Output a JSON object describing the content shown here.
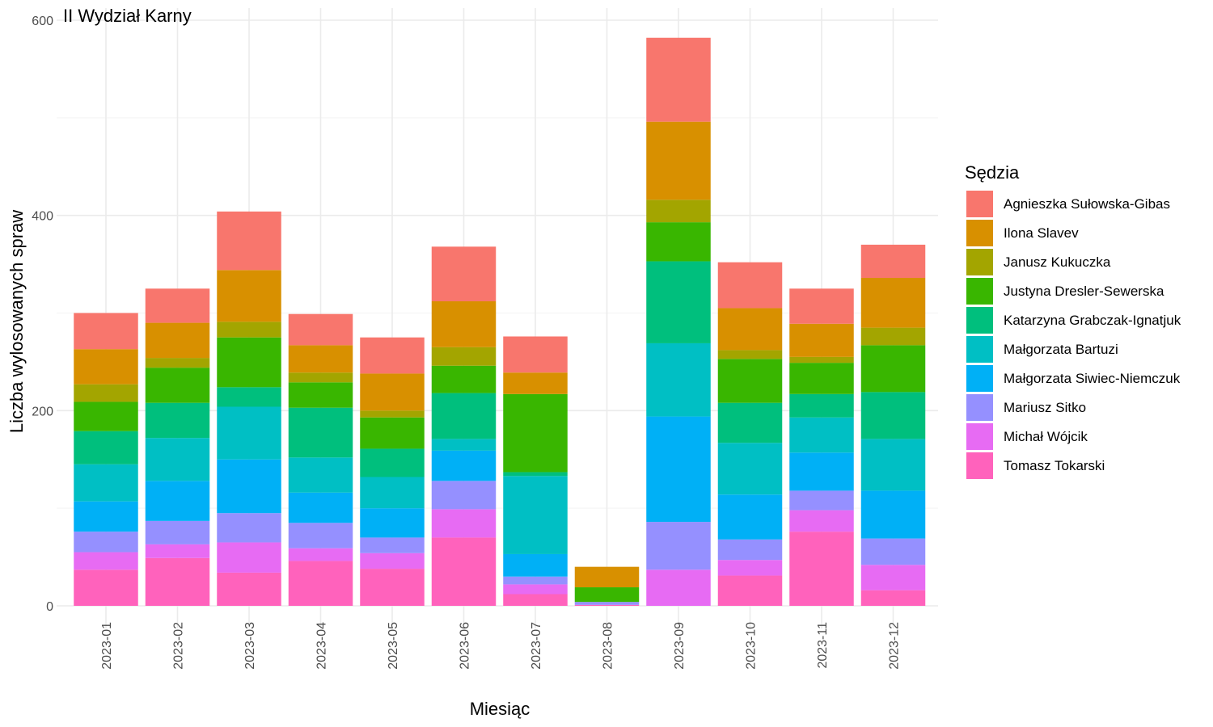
{
  "chart_data": {
    "type": "bar",
    "stacked": true,
    "title": "II Wydział Karny",
    "xlabel": "Miesiąc",
    "ylabel": "Liczba wylosowanych spraw",
    "ylim": [
      0,
      600
    ],
    "yticks": [
      0,
      200,
      400,
      600
    ],
    "grid": true,
    "legend_title": "Sędzia",
    "legend_position": "right",
    "categories": [
      "2023-01",
      "2023-02",
      "2023-03",
      "2023-04",
      "2023-05",
      "2023-06",
      "2023-07",
      "2023-08",
      "2023-09",
      "2023-10",
      "2023-11",
      "2023-12"
    ],
    "series": [
      {
        "name": "Agnieszka Sułowska-Gibas",
        "color": "#F8766D",
        "values": [
          37,
          35,
          60,
          32,
          37,
          56,
          37,
          0,
          86,
          47,
          36,
          34
        ]
      },
      {
        "name": "Ilona Slavev",
        "color": "#D89000",
        "values": [
          36,
          36,
          53,
          28,
          38,
          47,
          22,
          21,
          80,
          43,
          34,
          51
        ]
      },
      {
        "name": "Janusz Kukuczka",
        "color": "#A3A500",
        "values": [
          18,
          10,
          16,
          10,
          7,
          19,
          0,
          0,
          23,
          9,
          6,
          18
        ]
      },
      {
        "name": "Justyna Dresler-Sewerska",
        "color": "#39B600",
        "values": [
          30,
          36,
          51,
          26,
          32,
          28,
          80,
          15,
          40,
          45,
          32,
          48
        ]
      },
      {
        "name": "Katarzyna Grabczak-Ignatjuk",
        "color": "#00BF7D",
        "values": [
          34,
          36,
          20,
          51,
          29,
          47,
          4,
          0,
          84,
          41,
          24,
          48
        ]
      },
      {
        "name": "Małgorzata Bartuzi",
        "color": "#00BFC4",
        "values": [
          38,
          44,
          54,
          36,
          32,
          12,
          80,
          0,
          75,
          53,
          36,
          53
        ]
      },
      {
        "name": "Małgorzata Siwiec-Niemczuk",
        "color": "#00B0F6",
        "values": [
          31,
          41,
          55,
          31,
          30,
          31,
          23,
          0,
          108,
          46,
          39,
          49
        ]
      },
      {
        "name": "Mariusz Sitko",
        "color": "#9590FF",
        "values": [
          21,
          24,
          30,
          26,
          16,
          29,
          8,
          3,
          49,
          21,
          20,
          27
        ]
      },
      {
        "name": "Michał Wójcik",
        "color": "#E76BF3",
        "values": [
          18,
          14,
          31,
          13,
          16,
          29,
          10,
          0,
          37,
          16,
          22,
          26
        ]
      },
      {
        "name": "Tomasz Tokarski",
        "color": "#FF62BC",
        "values": [
          37,
          49,
          34,
          46,
          38,
          70,
          12,
          1,
          0,
          31,
          76,
          16
        ]
      }
    ]
  }
}
